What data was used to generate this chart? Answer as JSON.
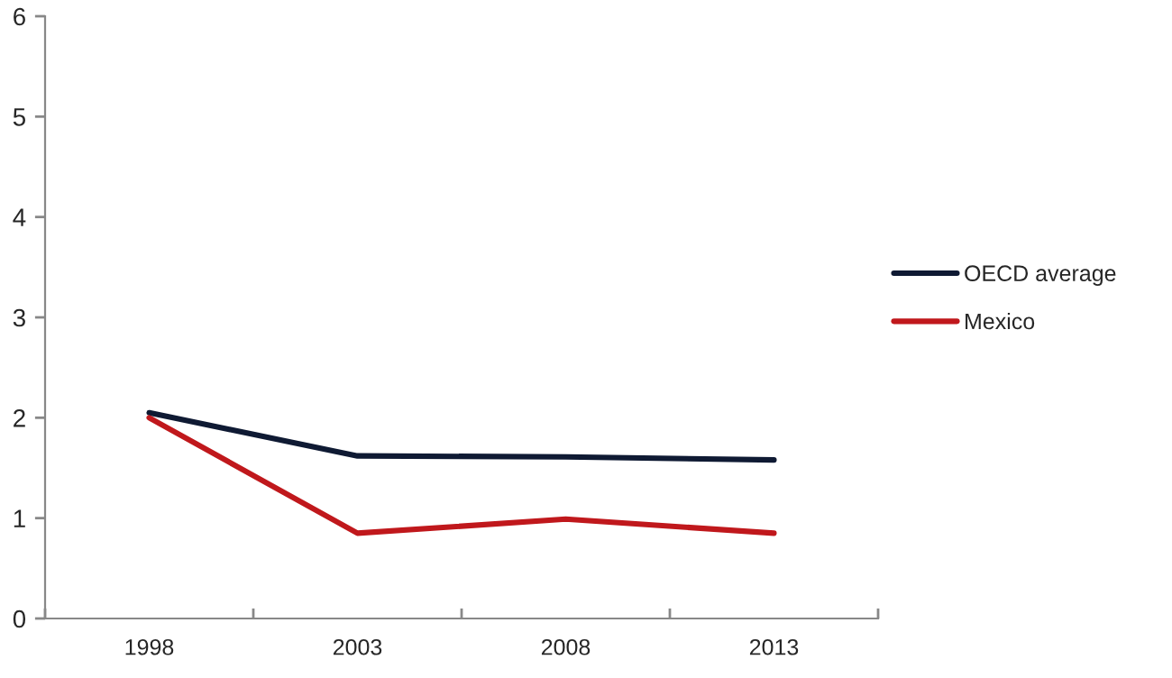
{
  "chart_data": {
    "type": "line",
    "categories": [
      "1998",
      "2003",
      "2008",
      "2013"
    ],
    "series": [
      {
        "name": "OECD average",
        "color": "#0f1a33",
        "values": [
          2.05,
          1.62,
          1.61,
          1.58
        ]
      },
      {
        "name": "Mexico",
        "color": "#c0181c",
        "values": [
          2.0,
          0.85,
          0.99,
          0.85
        ]
      }
    ],
    "ylim": [
      0,
      6
    ],
    "yticks": [
      0,
      1,
      2,
      3,
      4,
      5,
      6
    ],
    "legend": "right",
    "marker": "none",
    "line_style": "solid",
    "grid": false
  }
}
